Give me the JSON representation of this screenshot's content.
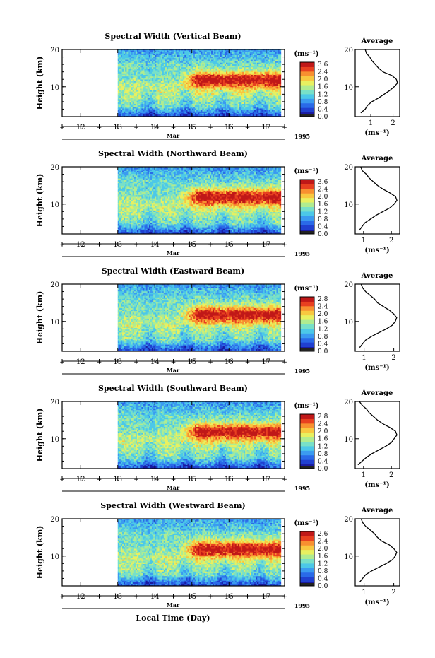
{
  "figure": {
    "xaxis_label": "Local Time (Day)",
    "month_label": "Mar",
    "year_label": "1995",
    "colorbar_unit": "(ms⁻¹)",
    "average_title": "Average",
    "average_unit": "(ms⁻¹)"
  },
  "colors": {
    "scale": [
      "#1a1aa0",
      "#2040d0",
      "#2a6ae8",
      "#3b9bf0",
      "#4cc8e8",
      "#78e0c8",
      "#b0ec90",
      "#e8f060",
      "#f8c840",
      "#f89030",
      "#e84020",
      "#c01818"
    ]
  },
  "chart_data": [
    {
      "type": "heatmap",
      "title": "Spectral Width (Vertical Beam)",
      "ylabel": "Height (km)",
      "yticks": [
        "20",
        "10"
      ],
      "ylim": [
        2,
        20
      ],
      "xticks": [
        "12",
        "13",
        "14",
        "15",
        "16",
        "17"
      ],
      "xlim": [
        11.5,
        17.5
      ],
      "data_start_day": 13.0,
      "data_end_day": 17.4,
      "colorbar_ticks": [
        "3.6",
        "2.4",
        "2.0",
        "1.6",
        "1.2",
        "0.8",
        "0.4",
        "0.0"
      ],
      "average": {
        "xticks": [
          "1",
          "2"
        ],
        "xlim": [
          0.3,
          2.3
        ],
        "heights": [
          3,
          4,
          5,
          6,
          7,
          8,
          9,
          10,
          11,
          12,
          13,
          14,
          15,
          16,
          17,
          18,
          19,
          20
        ],
        "values": [
          0.55,
          0.75,
          0.85,
          1.05,
          1.35,
          1.6,
          1.85,
          2.05,
          2.2,
          2.15,
          1.95,
          1.55,
          1.35,
          1.2,
          1.05,
          0.95,
          0.8,
          0.75
        ]
      }
    },
    {
      "type": "heatmap",
      "title": "Spectral Width (Northward Beam)",
      "ylabel": "Height (km)",
      "yticks": [
        "20",
        "10"
      ],
      "ylim": [
        2,
        20
      ],
      "xticks": [
        "12",
        "13",
        "14",
        "15",
        "16",
        "17"
      ],
      "xlim": [
        11.5,
        17.5
      ],
      "data_start_day": 13.0,
      "data_end_day": 17.4,
      "colorbar_ticks": [
        "3.6",
        "2.4",
        "2.0",
        "1.6",
        "1.2",
        "0.8",
        "0.4",
        "0.0"
      ],
      "average": {
        "xticks": [
          "1",
          "2"
        ],
        "xlim": [
          0.7,
          2.3
        ],
        "heights": [
          3,
          4,
          5,
          6,
          7,
          8,
          9,
          10,
          11,
          12,
          13,
          14,
          15,
          16,
          17,
          18,
          19,
          20
        ],
        "values": [
          0.85,
          0.95,
          1.05,
          1.25,
          1.45,
          1.7,
          1.95,
          2.1,
          2.2,
          2.15,
          1.95,
          1.7,
          1.5,
          1.35,
          1.2,
          1.1,
          0.95,
          0.9
        ]
      }
    },
    {
      "type": "heatmap",
      "title": "Spectral Width (Eastward Beam)",
      "ylabel": "Height (km)",
      "yticks": [
        "20",
        "10"
      ],
      "ylim": [
        2,
        20
      ],
      "xticks": [
        "12",
        "13",
        "14",
        "15",
        "16",
        "17"
      ],
      "xlim": [
        11.5,
        17.5
      ],
      "data_start_day": 13.0,
      "data_end_day": 17.4,
      "colorbar_ticks": [
        "2.8",
        "2.4",
        "2.0",
        "1.6",
        "1.2",
        "0.8",
        "0.4",
        "0.0"
      ],
      "average": {
        "xticks": [
          "1",
          "2"
        ],
        "xlim": [
          0.7,
          2.2
        ],
        "heights": [
          3,
          4,
          5,
          6,
          7,
          8,
          9,
          10,
          11,
          12,
          13,
          14,
          15,
          16,
          17,
          18,
          19,
          20
        ],
        "values": [
          0.85,
          0.95,
          1.05,
          1.25,
          1.5,
          1.75,
          1.95,
          2.05,
          2.1,
          2.0,
          1.85,
          1.65,
          1.45,
          1.35,
          1.2,
          1.05,
          0.95,
          0.9
        ]
      }
    },
    {
      "type": "heatmap",
      "title": "Spectral Width (Southward Beam)",
      "ylabel": "Height (km)",
      "yticks": [
        "20",
        "10"
      ],
      "ylim": [
        2,
        20
      ],
      "xticks": [
        "12",
        "13",
        "14",
        "15",
        "16",
        "17"
      ],
      "xlim": [
        11.5,
        17.5
      ],
      "data_start_day": 13.0,
      "data_end_day": 17.4,
      "colorbar_ticks": [
        "2.8",
        "2.4",
        "2.0",
        "1.6",
        "1.2",
        "0.8",
        "0.4",
        "0.0"
      ],
      "average": {
        "xticks": [
          "1",
          "2"
        ],
        "xlim": [
          0.7,
          2.3
        ],
        "heights": [
          3,
          4,
          5,
          6,
          7,
          8,
          9,
          10,
          11,
          12,
          13,
          14,
          15,
          16,
          17,
          18,
          19,
          20
        ],
        "values": [
          0.8,
          0.95,
          1.1,
          1.3,
          1.55,
          1.8,
          2.0,
          2.1,
          2.2,
          2.15,
          1.95,
          1.7,
          1.5,
          1.35,
          1.2,
          1.1,
          0.95,
          0.85
        ]
      }
    },
    {
      "type": "heatmap",
      "title": "Spectral Width (Westward Beam)",
      "ylabel": "Height (km)",
      "yticks": [
        "20",
        "10"
      ],
      "ylim": [
        2,
        20
      ],
      "xticks": [
        "12",
        "13",
        "14",
        "15",
        "16",
        "17"
      ],
      "xlim": [
        11.5,
        17.5
      ],
      "data_start_day": 13.0,
      "data_end_day": 17.4,
      "colorbar_ticks": [
        "2.6",
        "2.4",
        "2.0",
        "1.6",
        "1.2",
        "0.8",
        "0.4",
        "0.0"
      ],
      "average": {
        "xticks": [
          "1",
          "2"
        ],
        "xlim": [
          0.7,
          2.2
        ],
        "heights": [
          3,
          4,
          5,
          6,
          7,
          8,
          9,
          10,
          11,
          12,
          13,
          14,
          15,
          16,
          17,
          18,
          19,
          20
        ],
        "values": [
          0.85,
          0.95,
          1.05,
          1.25,
          1.5,
          1.75,
          1.95,
          2.05,
          2.1,
          2.0,
          1.85,
          1.6,
          1.45,
          1.35,
          1.2,
          1.05,
          0.95,
          0.9
        ]
      }
    }
  ]
}
